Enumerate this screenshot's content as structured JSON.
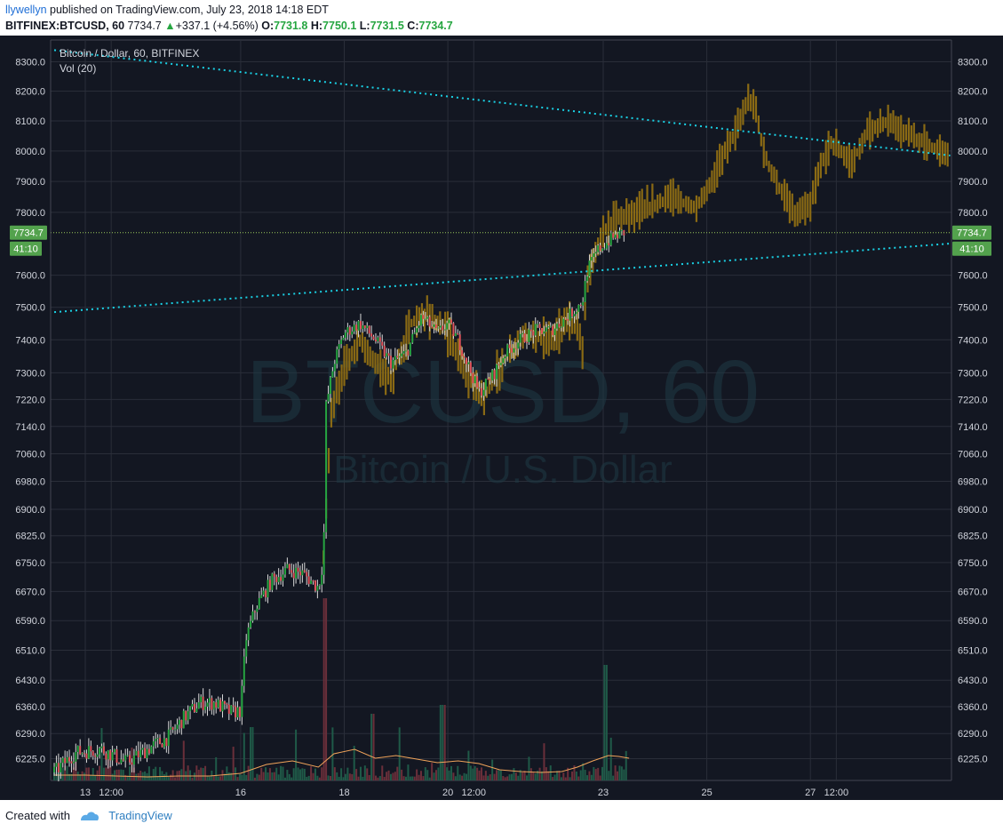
{
  "header": {
    "author": "llywellyn",
    "published_text": "published on TradingView.com, July 23, 2018 14:18 EDT",
    "symbol": "BITFINEX:BTCUSD, 60",
    "last": "7734.7",
    "change": "+337.1 (+4.56%)",
    "o_label": "O:",
    "o": "7731.8",
    "h_label": "H:",
    "h": "7750.1",
    "l_label": "L:",
    "l": "7731.5",
    "c_label": "C:",
    "c": "7734.7"
  },
  "footer": {
    "created_with": "Created with",
    "brand": "TradingView"
  },
  "colors": {
    "bg": "#131722",
    "up": "#26a641",
    "down": "#e0525a",
    "proj": "#8a6a14",
    "trend": "#1ad2e6",
    "grid": "#2a2e39",
    "axisText": "#d1d4dc",
    "priceBadge": "#53a24d"
  },
  "chart_data": {
    "type": "candlestick",
    "title": "Bitcoin / Dollar, 60, BITFINEX",
    "indicator": "Vol (20)",
    "watermark_symbol": "BTCUSD, 60",
    "watermark_name": "Bitcoin / U.S. Dollar",
    "price_scale": "log",
    "ylim": [
      6170,
      8360
    ],
    "y_ticks": [
      8300,
      8200,
      8100,
      8000,
      7900,
      7800,
      7600,
      7500,
      7400,
      7300,
      7220,
      7140,
      7060,
      6980,
      6900,
      6825,
      6750,
      6670,
      6590,
      6510,
      6430,
      6360,
      6290,
      6225
    ],
    "x_ticks": [
      {
        "label": "13",
        "day": 0.0
      },
      {
        "label": "12:00",
        "day": 0.5
      },
      {
        "label": "16",
        "day": 3.0
      },
      {
        "label": "18",
        "day": 5.0
      },
      {
        "label": "20",
        "day": 7.0
      },
      {
        "label": "12:00",
        "day": 7.5
      },
      {
        "label": "23",
        "day": 10.0
      },
      {
        "label": "25",
        "day": 12.0
      },
      {
        "label": "27",
        "day": 14.0
      },
      {
        "label": "12:00",
        "day": 14.5
      }
    ],
    "last_price": "7734.7",
    "last_price_value": 7734.7,
    "countdown": "41:10",
    "trendlines": [
      {
        "name": "upper",
        "from": {
          "day": -0.6,
          "price": 8340
        },
        "to": {
          "day": 16.7,
          "price": 7985
        }
      },
      {
        "name": "lower",
        "from": {
          "day": -0.6,
          "price": 7485
        },
        "to": {
          "day": 16.7,
          "price": 7700
        }
      }
    ],
    "actual_anchors": [
      [
        -0.6,
        6190
      ],
      [
        -0.2,
        6240
      ],
      [
        0.3,
        6250
      ],
      [
        0.8,
        6215
      ],
      [
        1.2,
        6250
      ],
      [
        1.6,
        6280
      ],
      [
        1.9,
        6330
      ],
      [
        2.2,
        6370
      ],
      [
        2.5,
        6370
      ],
      [
        2.8,
        6345
      ],
      [
        3.0,
        6350
      ],
      [
        3.1,
        6540
      ],
      [
        3.3,
        6630
      ],
      [
        3.6,
        6700
      ],
      [
        3.9,
        6730
      ],
      [
        4.2,
        6720
      ],
      [
        4.5,
        6680
      ],
      [
        4.6,
        6760
      ],
      [
        4.65,
        7200
      ],
      [
        4.8,
        7330
      ],
      [
        5.0,
        7420
      ],
      [
        5.3,
        7450
      ],
      [
        5.6,
        7400
      ],
      [
        5.9,
        7330
      ],
      [
        6.2,
        7360
      ],
      [
        6.5,
        7470
      ],
      [
        6.8,
        7420
      ],
      [
        7.0,
        7450
      ],
      [
        7.2,
        7400
      ],
      [
        7.4,
        7320
      ],
      [
        7.6,
        7240
      ],
      [
        7.9,
        7300
      ],
      [
        8.1,
        7360
      ],
      [
        8.4,
        7400
      ],
      [
        8.7,
        7430
      ],
      [
        9.0,
        7430
      ],
      [
        9.3,
        7470
      ],
      [
        9.5,
        7500
      ],
      [
        9.6,
        7520
      ],
      [
        9.7,
        7620
      ],
      [
        9.9,
        7680
      ],
      [
        10.2,
        7720
      ],
      [
        10.4,
        7735
      ]
    ],
    "projection_anchors": [
      [
        4.6,
        6760
      ],
      [
        4.75,
        7180
      ],
      [
        5.0,
        7320
      ],
      [
        5.3,
        7400
      ],
      [
        5.6,
        7330
      ],
      [
        5.9,
        7280
      ],
      [
        6.3,
        7450
      ],
      [
        6.6,
        7480
      ],
      [
        7.0,
        7420
      ],
      [
        7.4,
        7280
      ],
      [
        7.7,
        7230
      ],
      [
        8.1,
        7340
      ],
      [
        8.5,
        7420
      ],
      [
        9.0,
        7400
      ],
      [
        9.3,
        7460
      ],
      [
        9.5,
        7440
      ],
      [
        9.6,
        7370
      ],
      [
        9.7,
        7600
      ],
      [
        9.9,
        7700
      ],
      [
        10.2,
        7780
      ],
      [
        10.8,
        7810
      ],
      [
        11.3,
        7850
      ],
      [
        11.8,
        7810
      ],
      [
        12.1,
        7900
      ],
      [
        12.4,
        8020
      ],
      [
        12.6,
        8080
      ],
      [
        12.8,
        8170
      ],
      [
        12.95,
        8140
      ],
      [
        13.1,
        7990
      ],
      [
        13.4,
        7880
      ],
      [
        13.7,
        7790
      ],
      [
        14.0,
        7820
      ],
      [
        14.2,
        7950
      ],
      [
        14.4,
        8030
      ],
      [
        14.8,
        7960
      ],
      [
        15.1,
        8060
      ],
      [
        15.5,
        8100
      ],
      [
        15.8,
        8060
      ],
      [
        16.2,
        8030
      ],
      [
        16.5,
        8000
      ],
      [
        16.7,
        7990
      ]
    ],
    "volume_ma": [
      [
        -0.6,
        6
      ],
      [
        0.0,
        6
      ],
      [
        0.6,
        5
      ],
      [
        1.2,
        4
      ],
      [
        1.8,
        5
      ],
      [
        2.4,
        5
      ],
      [
        3.0,
        8
      ],
      [
        3.5,
        18
      ],
      [
        4.0,
        22
      ],
      [
        4.5,
        15
      ],
      [
        4.8,
        30
      ],
      [
        5.2,
        35
      ],
      [
        5.6,
        25
      ],
      [
        6.0,
        28
      ],
      [
        6.4,
        24
      ],
      [
        6.8,
        20
      ],
      [
        7.2,
        22
      ],
      [
        7.6,
        19
      ],
      [
        8.0,
        12
      ],
      [
        8.4,
        10
      ],
      [
        8.8,
        9
      ],
      [
        9.2,
        10
      ],
      [
        9.5,
        15
      ],
      [
        9.8,
        22
      ],
      [
        10.1,
        28
      ],
      [
        10.3,
        27
      ],
      [
        10.5,
        25
      ]
    ]
  }
}
